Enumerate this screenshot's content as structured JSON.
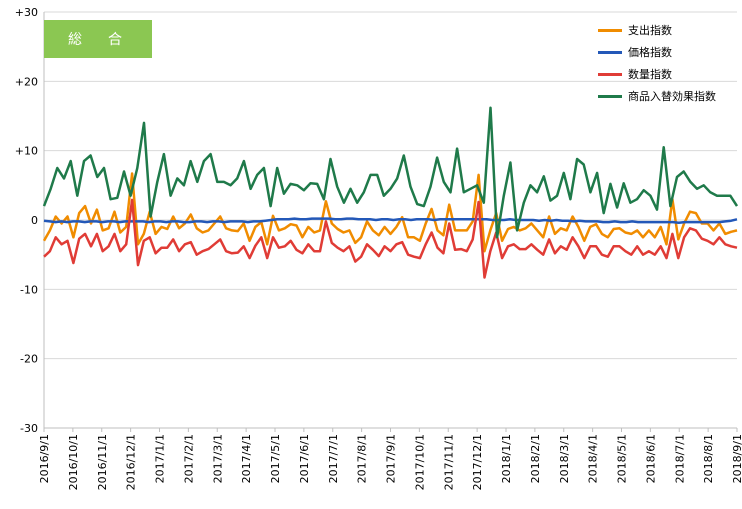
{
  "badge": {
    "label": "総　合"
  },
  "colors": {
    "expenditure": "#f08c00",
    "price": "#2358b8",
    "quantity": "#e03c36",
    "effect": "#1f7a4a",
    "badge": "#8bc752"
  },
  "chart_data": {
    "type": "line",
    "ylim": [
      -30,
      30
    ],
    "yticks": [
      "+30",
      "+20",
      "+10",
      "0",
      "-10",
      "-20",
      "-30"
    ],
    "ytick_values": [
      30,
      20,
      10,
      0,
      -10,
      -20,
      -30
    ],
    "grid": true,
    "legend_position": "top-right",
    "x_start": "2016/9/1",
    "xticks": [
      "2016/9/1",
      "2016/10/1",
      "2016/11/1",
      "2016/12/1",
      "2017/1/1",
      "2017/2/1",
      "2017/3/1",
      "2017/4/1",
      "2017/5/1",
      "2017/6/1",
      "2017/7/1",
      "2017/8/1",
      "2017/9/1",
      "2017/10/1",
      "2017/11/1",
      "2017/12/1",
      "2018/1/1",
      "2018/2/1",
      "2018/3/1",
      "2018/4/1",
      "2018/5/1",
      "2018/6/1",
      "2018/7/1",
      "2018/8/1",
      "2018/9/1"
    ],
    "series": [
      {
        "name": "支出指数",
        "color_key": "expenditure",
        "values": [
          -3.0,
          -1.5,
          0.5,
          -0.5,
          0.5,
          -2.5,
          1,
          2,
          -0.5,
          1.5,
          -1.5,
          -1.2,
          1.2,
          -1.8,
          -1,
          6.7,
          -3.5,
          -2,
          1.2,
          -2,
          -1,
          -1.3,
          0.5,
          -1.2,
          -0.5,
          0.8,
          -1.2,
          -1.8,
          -1.5,
          -0.5,
          0.5,
          -1.2,
          -1.5,
          -1.6,
          -0.5,
          -3,
          -1,
          -0.3,
          -3.5,
          0.6,
          -1.5,
          -1.2,
          -0.6,
          -0.8,
          -2.5,
          -1,
          -1.8,
          -1.5,
          2.7,
          -0.5,
          -1.3,
          -1.8,
          -1.5,
          -3.3,
          -2.5,
          -0.2,
          -1.5,
          -2.2,
          -1,
          -2,
          -1,
          0.4,
          -2.5,
          -2.5,
          -3,
          -0.5,
          1.6,
          -1.5,
          -2.2,
          2.2,
          -1.5,
          -1.5,
          -1.5,
          -0.2,
          6.5,
          -4.5,
          -1.5,
          1,
          -3,
          -1.3,
          -1,
          -1.5,
          -1.2,
          -0.5,
          -1.5,
          -2.5,
          0.5,
          -2,
          -1.2,
          -1.5,
          0.5,
          -1,
          -3,
          -1,
          -0.6,
          -2,
          -2.5,
          -1.3,
          -1.2,
          -1.8,
          -2,
          -1.5,
          -2.5,
          -1.5,
          -2.5,
          -1,
          -3.5,
          3,
          -2.8,
          -0.5,
          1.2,
          1,
          -0.5,
          -0.5,
          -1.5,
          -0.5,
          -2,
          -1.7,
          -1.5
        ]
      },
      {
        "name": "価格指数",
        "color_key": "price",
        "values": [
          -0.1,
          -0.2,
          -0.3,
          -0.2,
          -0.3,
          -0.2,
          -0.2,
          -0.3,
          -0.2,
          -0.2,
          -0.3,
          -0.2,
          -0.2,
          -0.3,
          -0.2,
          -0.2,
          -0.2,
          -0.2,
          -0.3,
          -0.2,
          -0.2,
          -0.3,
          -0.2,
          -0.2,
          -0.3,
          -0.3,
          -0.2,
          -0.2,
          -0.3,
          -0.2,
          -0.2,
          -0.3,
          -0.2,
          -0.2,
          -0.2,
          -0.3,
          -0.2,
          -0.2,
          -0.1,
          0,
          0.1,
          0.1,
          0.1,
          0.2,
          0.1,
          0.1,
          0.2,
          0.2,
          0.2,
          0.2,
          0.1,
          0.1,
          0.2,
          0.2,
          0.1,
          0.1,
          0.1,
          0,
          0.1,
          0.1,
          0,
          0.1,
          0.1,
          0,
          0.1,
          0.1,
          0.1,
          0,
          0.1,
          0.1,
          0.1,
          0.1,
          0.1,
          0.1,
          0.1,
          0.1,
          0.1,
          0,
          0,
          0,
          0.1,
          0,
          0,
          0,
          0,
          -0.1,
          0,
          -0.1,
          0,
          -0.1,
          -0.1,
          -0.2,
          -0.1,
          -0.2,
          -0.2,
          -0.2,
          -0.3,
          -0.3,
          -0.2,
          -0.3,
          -0.3,
          -0.2,
          -0.3,
          -0.3,
          -0.3,
          -0.3,
          -0.3,
          -0.3,
          -0.3,
          -0.4,
          -0.3,
          -0.3,
          -0.3,
          -0.3,
          -0.3,
          -0.3,
          -0.3,
          -0.2,
          -0.1,
          0.1
        ]
      },
      {
        "name": "数量指数",
        "color_key": "quantity",
        "values": [
          -5.3,
          -4.5,
          -2.5,
          -3.5,
          -3,
          -6.2,
          -2.7,
          -2,
          -3.8,
          -2,
          -4.5,
          -3.8,
          -2,
          -4.5,
          -3.5,
          2.9,
          -6.5,
          -3,
          -2.5,
          -4.8,
          -4,
          -4,
          -2.8,
          -4.5,
          -3.5,
          -3.2,
          -5,
          -4.5,
          -4.2,
          -3.5,
          -2.8,
          -4.5,
          -4.8,
          -4.7,
          -3.8,
          -5.5,
          -3.7,
          -2.5,
          -5.5,
          -2.5,
          -4,
          -3.8,
          -3,
          -4.3,
          -4.8,
          -3.5,
          -4.5,
          -4.5,
          -0.2,
          -3.3,
          -4,
          -4.5,
          -3.8,
          -6,
          -5.3,
          -3.5,
          -4.3,
          -5.2,
          -3.8,
          -4.5,
          -3.5,
          -3.2,
          -5,
          -5.3,
          -5.5,
          -3.5,
          -1.8,
          -4,
          -4.8,
          -0.5,
          -4.3,
          -4.2,
          -4.5,
          -2.8,
          2.6,
          -8.3,
          -4.5,
          -1.8,
          -5.5,
          -3.8,
          -3.5,
          -4.2,
          -4.2,
          -3.5,
          -4.3,
          -5,
          -2.8,
          -4.8,
          -3.8,
          -4.3,
          -2.5,
          -3.8,
          -5.5,
          -3.8,
          -3.8,
          -5,
          -5.3,
          -3.8,
          -3.8,
          -4.5,
          -5,
          -3.8,
          -5,
          -4.5,
          -5,
          -3.8,
          -5.5,
          -2,
          -5.5,
          -2.5,
          -1.2,
          -1.5,
          -2.7,
          -3,
          -3.5,
          -2.5,
          -3.5,
          -3.8,
          -4
        ]
      },
      {
        "name": "商品入替効果指数",
        "color_key": "effect",
        "values": [
          2,
          4.5,
          7.5,
          6,
          8.5,
          3.5,
          8.5,
          9.3,
          6.2,
          7.5,
          3,
          3.2,
          7,
          3.5,
          7.5,
          14,
          0.5,
          5.5,
          9.5,
          3.5,
          6,
          5,
          8.5,
          5.5,
          8.5,
          9.5,
          5.5,
          5.5,
          5,
          6,
          8.5,
          4.5,
          6.5,
          7.5,
          2,
          7.5,
          3.8,
          5.2,
          5,
          4.3,
          5.3,
          5.2,
          3,
          8.8,
          4.8,
          2.5,
          4.5,
          2.5,
          4,
          6.5,
          6.5,
          3.5,
          4.5,
          6,
          9.3,
          4.8,
          2.3,
          2,
          4.8,
          9,
          5.5,
          4,
          10.3,
          4,
          4.5,
          5,
          2.5,
          16.2,
          -2.5,
          3.5,
          8.3,
          -1.5,
          2.5,
          5,
          4,
          6.3,
          2.8,
          3.5,
          6.8,
          3,
          8.8,
          8,
          4,
          6.8,
          1,
          5.2,
          1.8,
          5.3,
          2.5,
          3,
          4.3,
          3.5,
          1.5,
          10.5,
          2,
          6.2,
          7,
          5.5,
          4.5,
          5,
          4,
          3.5,
          3.5,
          3.5,
          2
        ]
      }
    ]
  }
}
